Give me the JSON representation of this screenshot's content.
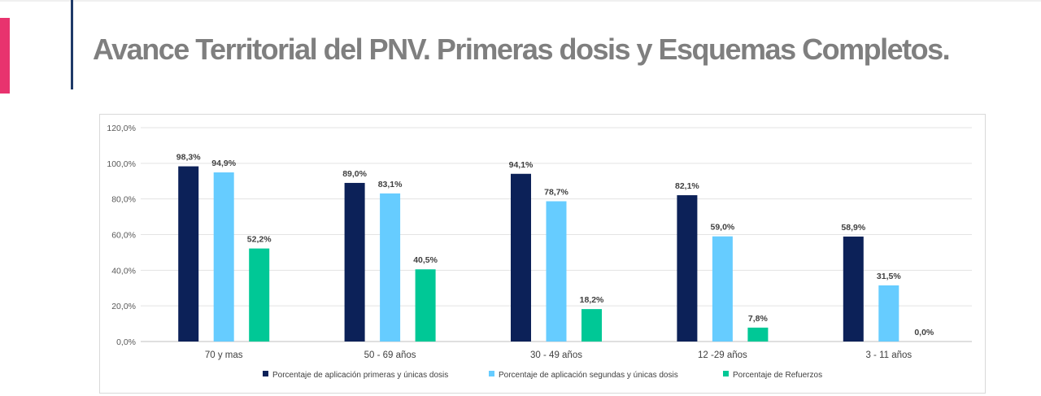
{
  "slide": {
    "title": "Avance Territorial del PNV. Primeras dosis y Esquemas Completos.",
    "accent_color": "#e8336e",
    "divider_color": "#1f3a68",
    "title_color": "#7f7f7f"
  },
  "chart_data": {
    "type": "bar",
    "title": "",
    "xlabel": "",
    "ylabel": "",
    "ylim": [
      0,
      120
    ],
    "yticks": [
      0,
      20,
      40,
      60,
      80,
      100,
      120
    ],
    "ytick_labels": [
      "0,0%",
      "20,0%",
      "40,0%",
      "60,0%",
      "80,0%",
      "100,0%",
      "120,0%"
    ],
    "grid": true,
    "legend_position": "bottom",
    "categories": [
      "70  y mas",
      "50 - 69 años",
      "30 - 49 años",
      "12 -29 años",
      "3 - 11 años"
    ],
    "series": [
      {
        "name": "Porcentaje de aplicación primeras y únicas dosis",
        "color": "#0c2158",
        "values": [
          98.3,
          89.0,
          94.1,
          82.1,
          58.9
        ],
        "labels": [
          "98,3%",
          "89,0%",
          "94,1%",
          "82,1%",
          "58,9%"
        ]
      },
      {
        "name": "Porcentaje de aplicación segundas y únicas dosis",
        "color": "#66ccff",
        "values": [
          94.9,
          83.1,
          78.7,
          59.0,
          31.5
        ],
        "labels": [
          "94,9%",
          "83,1%",
          "78,7%",
          "59,0%",
          "31,5%"
        ]
      },
      {
        "name": "Porcentaje de Refuerzos",
        "color": "#00c896",
        "values": [
          52.2,
          40.5,
          18.2,
          7.8,
          0.0
        ],
        "labels": [
          "52,2%",
          "40,5%",
          "18,2%",
          "7,8%",
          "0,0%"
        ]
      }
    ]
  }
}
